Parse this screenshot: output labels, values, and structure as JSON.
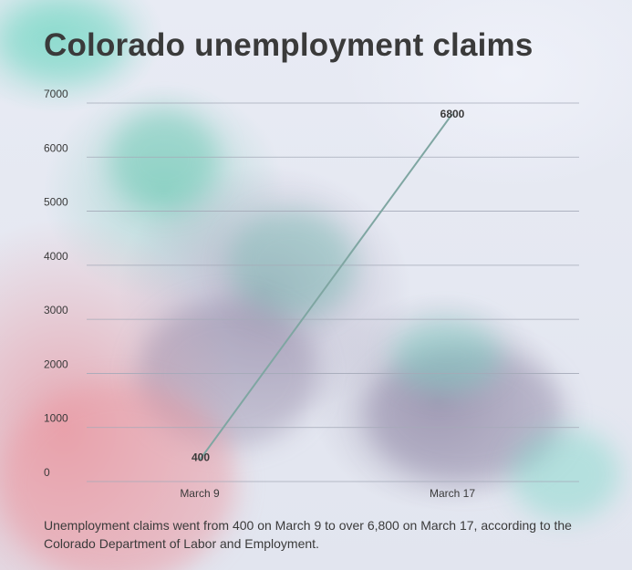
{
  "title": "Colorado unemployment claims",
  "caption": "Unemployment claims went from 400 on March 9 to over 6,800 on March 17, according to the Colorado Department of Labor and Employment.",
  "colors": {
    "line": "#7fa6a2",
    "grid": "#a5aab8",
    "text": "#3a3a3a"
  },
  "chart_data": {
    "type": "line",
    "title": "Colorado unemployment claims",
    "categories": [
      "March 9",
      "March 17"
    ],
    "series": [
      {
        "values": [
          400,
          6800
        ]
      }
    ],
    "data_labels": [
      "400",
      "6800"
    ],
    "ylim": [
      0,
      7000
    ],
    "yticks": [
      0,
      1000,
      2000,
      3000,
      4000,
      5000,
      6000,
      7000
    ],
    "xlabel": "",
    "ylabel": "",
    "grid": true,
    "legend": "none"
  }
}
